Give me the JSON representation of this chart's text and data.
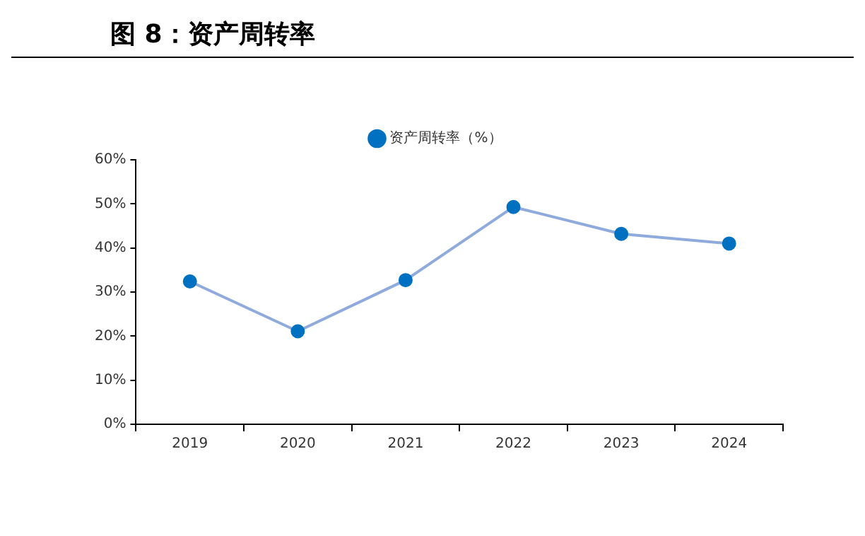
{
  "chart_data": {
    "type": "line",
    "title": "图 8：资产周转率",
    "categories": [
      "2019",
      "2020",
      "2021",
      "2022",
      "2023",
      "2024"
    ],
    "series": [
      {
        "name": "资产周转率（%）",
        "color": "#8faadc",
        "values": [
          32.4,
          21.1,
          32.7,
          49.3,
          43.2,
          41.0
        ]
      }
    ],
    "ylim": [
      0,
      60
    ],
    "yticks": [
      {
        "value": 0,
        "label": "0%"
      },
      {
        "value": 10,
        "label": "10%"
      },
      {
        "value": 20,
        "label": "20%"
      },
      {
        "value": 30,
        "label": "30%"
      },
      {
        "value": 40,
        "label": "40%"
      },
      {
        "value": 50,
        "label": "50%"
      },
      {
        "value": 60,
        "label": "60%"
      }
    ],
    "grid": false,
    "legend": "top",
    "marker": "circle",
    "line_style": "solid"
  }
}
